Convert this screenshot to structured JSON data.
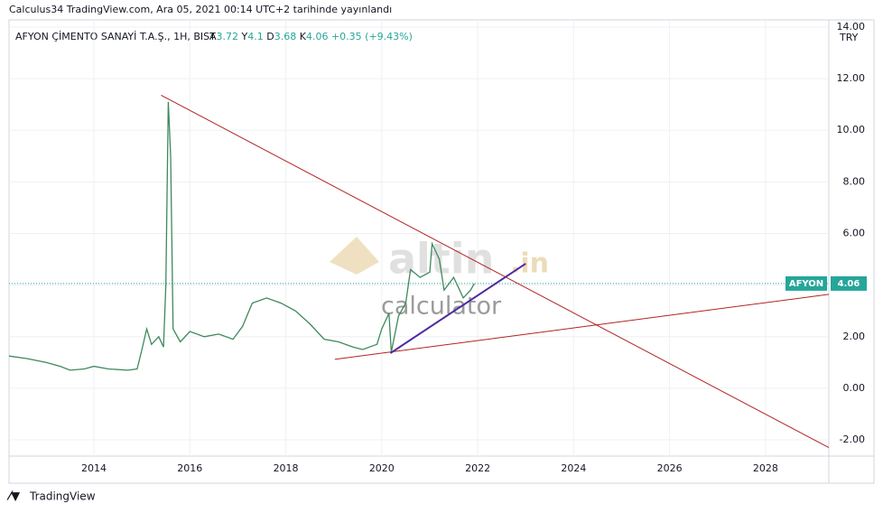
{
  "header": {
    "publisher": "Calculus34 TradingView.com, Ara 05, 2021 00:14 UTC+2 tarihinde yayınlandı"
  },
  "chart_data": {
    "type": "line",
    "symbol_title": "AFYON ÇİMENTO SANAYİ T.A.Ş., 1H, BIST",
    "ohlc": [
      {
        "label": "A",
        "value": 3.72
      },
      {
        "label": "Y",
        "value": 4.1
      },
      {
        "label": "D",
        "value": 3.68
      },
      {
        "label": "K",
        "value": 4.06
      }
    ],
    "change": "+0.35 (+9.43%)",
    "currency": "TRY",
    "x": [
      2012.23,
      2012.6,
      2013.0,
      2013.3,
      2013.5,
      2013.8,
      2014.0,
      2014.3,
      2014.7,
      2014.9,
      2015.0,
      2015.1,
      2015.2,
      2015.35,
      2015.45,
      2015.5,
      2015.55,
      2015.6,
      2015.65,
      2015.8,
      2016.0,
      2016.3,
      2016.6,
      2016.9,
      2017.1,
      2017.3,
      2017.6,
      2017.9,
      2018.2,
      2018.5,
      2018.8,
      2019.1,
      2019.4,
      2019.6,
      2019.9,
      2020.0,
      2020.15,
      2020.2,
      2020.35,
      2020.5,
      2020.6,
      2020.8,
      2021.0,
      2021.05,
      2021.2,
      2021.3,
      2021.5,
      2021.7,
      2021.85,
      2021.93
    ],
    "series": [
      {
        "name": "AFYON",
        "color": "#3d8a5c",
        "values": [
          1.25,
          1.15,
          1.0,
          0.85,
          0.7,
          0.75,
          0.85,
          0.75,
          0.7,
          0.75,
          1.5,
          2.3,
          1.7,
          2.0,
          1.6,
          4.0,
          11.1,
          9.0,
          2.3,
          1.8,
          2.2,
          2.0,
          2.1,
          1.9,
          2.4,
          3.3,
          3.5,
          3.3,
          3.0,
          2.5,
          1.9,
          1.8,
          1.6,
          1.5,
          1.7,
          2.3,
          2.9,
          1.4,
          2.8,
          3.3,
          4.6,
          4.3,
          4.5,
          5.6,
          5.0,
          3.8,
          4.3,
          3.5,
          3.8,
          4.06
        ]
      }
    ],
    "last_price": {
      "value": 4.06,
      "label": "4.06"
    },
    "trendlines": [
      {
        "color": "#b22222",
        "x": [
          2015.4,
          2029.32
        ],
        "y": [
          11.36,
          -2.3
        ]
      },
      {
        "color": "#b22222",
        "x": [
          2019.02,
          2029.32
        ],
        "y": [
          1.12,
          3.64
        ]
      },
      {
        "color": "#4b2a9e",
        "x": [
          2020.18,
          2023.0
        ],
        "y": [
          1.36,
          4.83
        ]
      }
    ],
    "xlim": [
      2012.23,
      2029.32
    ],
    "xticks": [
      2014,
      2016,
      2018,
      2020,
      2022,
      2024,
      2026,
      2028
    ],
    "ylim": [
      -2.63,
      14.28
    ],
    "yticks": [
      {
        "value": -2,
        "label": "-2.00"
      },
      {
        "value": 0,
        "label": "0.00"
      },
      {
        "value": 2,
        "label": "2.00"
      },
      {
        "value": 4,
        "label": "4.00"
      },
      {
        "value": 6,
        "label": "6.00"
      },
      {
        "value": 8,
        "label": "8.00"
      },
      {
        "value": 10,
        "label": "10.00"
      },
      {
        "value": 12,
        "label": "12.00"
      },
      {
        "value": 14,
        "label": "14.00"
      }
    ],
    "grid": true,
    "watermark": [
      "altin",
      ".in",
      "calculator"
    ]
  },
  "footer": {
    "brand": "TradingView"
  }
}
